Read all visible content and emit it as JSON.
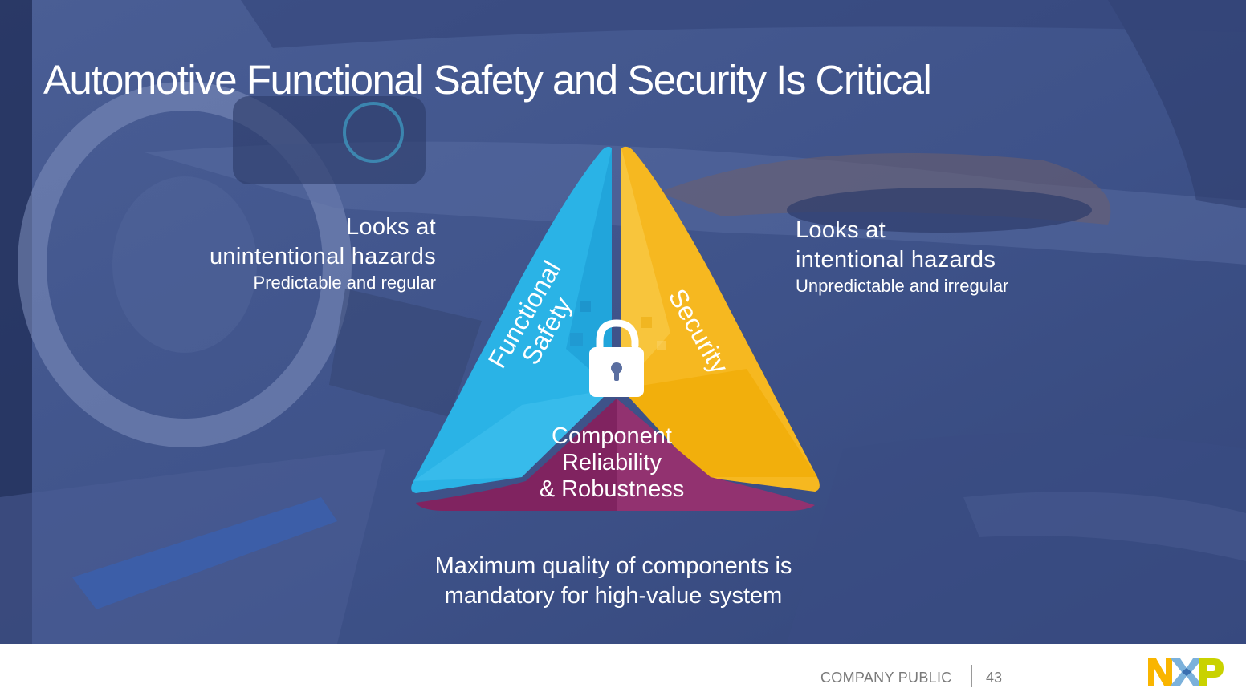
{
  "slide": {
    "title": "Automotive Functional Safety and Security Is Critical",
    "left": {
      "line1": "Looks at",
      "line2": "unintentional hazards",
      "sub": "Predictable and regular"
    },
    "right": {
      "line1": "Looks at",
      "line2": "intentional hazards",
      "sub": "Unpredictable and irregular"
    },
    "triangle": {
      "functional_line1": "Functional",
      "functional_line2": "Safety",
      "security": "Security",
      "component_line1": "Component",
      "component_line2": "Reliability",
      "component_line3": "& Robustness",
      "lock_icon": "padlock-unlocked-icon"
    },
    "bottom": "Maximum quality of components is mandatory for high-value system"
  },
  "footer": {
    "classification": "COMPANY PUBLIC",
    "page_number": "43",
    "logo_text": "NXP"
  },
  "colors": {
    "background": "#3d5187",
    "functional_safety": "#2ab3e6",
    "security": "#f6b820",
    "component": "#8b2a68",
    "logo_n": "#f9b500",
    "logo_x": "#7bb1db",
    "logo_p": "#c9d200"
  }
}
